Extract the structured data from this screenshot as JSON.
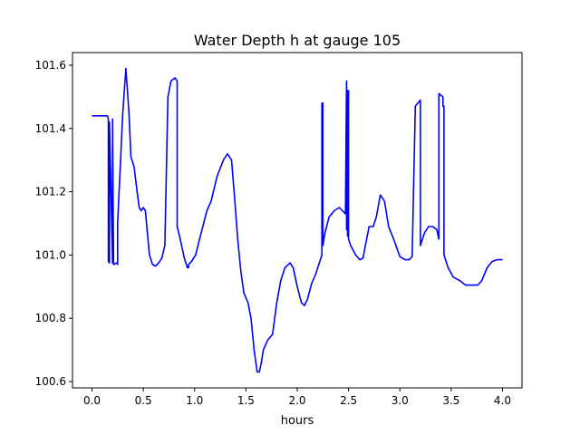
{
  "chart_data": {
    "type": "line",
    "title": "Water Depth h at gauge 105",
    "xlabel": "hours",
    "ylabel": "",
    "xlim": [
      -0.19,
      4.19
    ],
    "ylim": [
      100.58,
      101.64
    ],
    "xticks": [
      0.0,
      0.5,
      1.0,
      1.5,
      2.0,
      2.5,
      3.0,
      3.5,
      4.0
    ],
    "xtick_labels": [
      "0.0",
      "0.5",
      "1.0",
      "1.5",
      "2.0",
      "2.5",
      "3.0",
      "3.5",
      "4.0"
    ],
    "yticks": [
      100.6,
      100.8,
      101.0,
      101.2,
      101.4,
      101.6
    ],
    "ytick_labels": [
      "100.6",
      "100.8",
      "101.0",
      "101.2",
      "101.4",
      "101.6"
    ],
    "grid": false,
    "series": [
      {
        "color": "#0000ff",
        "x": [
          0.0,
          0.15,
          0.16,
          0.16,
          0.17,
          0.17,
          0.2,
          0.2,
          0.21,
          0.21,
          0.24,
          0.24,
          0.25,
          0.25,
          0.3,
          0.33,
          0.36,
          0.38,
          0.41,
          0.44,
          0.46,
          0.48,
          0.5,
          0.52,
          0.56,
          0.59,
          0.62,
          0.65,
          0.68,
          0.71,
          0.74,
          0.77,
          0.81,
          0.83,
          0.83,
          0.86,
          0.9,
          0.93,
          0.94,
          0.94,
          0.97,
          1.01,
          1.04,
          1.08,
          1.12,
          1.16,
          1.22,
          1.28,
          1.32,
          1.36,
          1.39,
          1.42,
          1.45,
          1.48,
          1.52,
          1.55,
          1.58,
          1.61,
          1.63,
          1.65,
          1.67,
          1.71,
          1.76,
          1.8,
          1.84,
          1.88,
          1.93,
          1.96,
          2.0,
          2.04,
          2.07,
          2.1,
          2.14,
          2.18,
          2.22,
          2.24,
          2.24,
          2.25,
          2.25,
          2.27,
          2.31,
          2.36,
          2.41,
          2.44,
          2.47,
          2.48,
          2.48,
          2.49,
          2.49,
          2.5,
          2.5,
          2.52,
          2.57,
          2.61,
          2.64,
          2.67,
          2.7,
          2.74,
          2.77,
          2.81,
          2.85,
          2.89,
          2.94,
          3.0,
          3.05,
          3.09,
          3.12,
          3.15,
          3.15,
          3.2,
          3.2,
          3.24,
          3.28,
          3.32,
          3.36,
          3.38,
          3.38,
          3.42,
          3.42,
          3.43,
          3.43,
          3.47,
          3.52,
          3.58,
          3.64,
          3.7,
          3.76,
          3.8,
          3.85,
          3.9,
          3.95,
          4.0
        ],
        "y": [
          101.44,
          101.44,
          101.43,
          100.98,
          100.975,
          101.42,
          100.975,
          101.43,
          100.97,
          100.97,
          100.975,
          100.975,
          100.97,
          101.1,
          101.45,
          101.59,
          101.45,
          101.31,
          101.28,
          101.2,
          101.15,
          101.14,
          101.15,
          101.14,
          101.0,
          100.97,
          100.965,
          100.975,
          100.99,
          101.03,
          101.5,
          101.55,
          101.56,
          101.55,
          101.09,
          101.05,
          100.99,
          100.96,
          100.96,
          100.97,
          100.98,
          101.0,
          101.04,
          101.09,
          101.14,
          101.17,
          101.25,
          101.3,
          101.32,
          101.3,
          101.18,
          101.05,
          100.95,
          100.88,
          100.85,
          100.8,
          100.7,
          100.63,
          100.63,
          100.66,
          100.7,
          100.73,
          100.75,
          100.85,
          100.92,
          100.96,
          100.975,
          100.96,
          100.9,
          100.85,
          100.84,
          100.86,
          100.91,
          100.94,
          100.98,
          101.0,
          101.48,
          101.48,
          101.03,
          101.07,
          101.12,
          101.14,
          101.15,
          101.14,
          101.13,
          101.55,
          101.08,
          101.52,
          101.06,
          101.52,
          101.05,
          101.03,
          101.0,
          100.985,
          100.99,
          101.04,
          101.09,
          101.09,
          101.12,
          101.19,
          101.17,
          101.09,
          101.05,
          100.995,
          100.985,
          100.985,
          100.995,
          101.46,
          101.47,
          101.49,
          101.03,
          101.07,
          101.09,
          101.09,
          101.08,
          101.05,
          101.51,
          101.5,
          101.47,
          101.47,
          101.0,
          100.96,
          100.93,
          100.92,
          100.905,
          100.905,
          100.905,
          100.92,
          100.96,
          100.98,
          100.985,
          100.985
        ]
      }
    ]
  }
}
